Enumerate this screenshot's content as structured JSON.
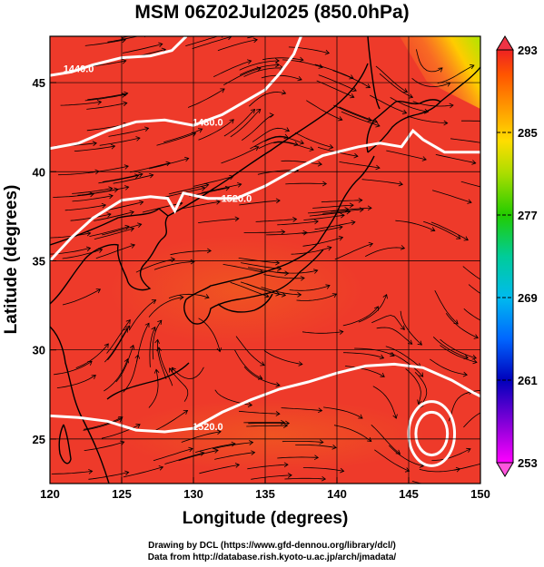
{
  "title": "MSM 06Z02Jul2025 (850.0hPa)",
  "credits": {
    "line1": "Drawing by DCL (https://www.gfd-dennou.org/library/dcl/)",
    "line2": "Data from http://database.rish.kyoto-u.ac.jp/arch/jmadata/"
  },
  "chart_data": {
    "type": "map",
    "xlabel": "Longitude (degrees)",
    "ylabel": "Latitude  (degrees)",
    "xlim": [
      120,
      150
    ],
    "ylim": [
      22.5,
      47.6
    ],
    "xticks": [
      120,
      125,
      130,
      135,
      140,
      145,
      150
    ],
    "yticks": [
      25,
      30,
      35,
      40,
      45
    ],
    "colorbar": {
      "min": 253,
      "max": 293,
      "ticks": [
        293,
        285,
        277,
        269,
        261,
        253
      ],
      "colors": [
        "#ff00ff",
        "#8800ee",
        "#0000cc",
        "#0055ff",
        "#00aaff",
        "#00cccc",
        "#00cc66",
        "#22cc00",
        "#88dd00",
        "#ccee00",
        "#ffdd00",
        "#ffaa00",
        "#ff7700",
        "#ff4400",
        "#ee2222"
      ]
    },
    "contours": [
      {
        "label": "1440.0",
        "points": [
          [
            120,
            45.4
          ],
          [
            121.5,
            45.6
          ],
          [
            123,
            46.0
          ],
          [
            125,
            46.4
          ],
          [
            127,
            46.5
          ],
          [
            128.5,
            46.8
          ],
          [
            129.5,
            47.6
          ]
        ]
      },
      {
        "label": "1480.0",
        "points": [
          [
            120,
            41.3
          ],
          [
            122,
            41.6
          ],
          [
            124,
            42.3
          ],
          [
            126,
            42.8
          ],
          [
            128,
            42.9
          ],
          [
            130,
            42.6
          ],
          [
            132,
            43.2
          ],
          [
            133.5,
            43.9
          ],
          [
            135,
            44.6
          ],
          [
            136,
            45.5
          ],
          [
            137,
            46.6
          ],
          [
            137.5,
            47.6
          ]
        ]
      },
      {
        "label": "1520.0",
        "points": [
          [
            120,
            35.0
          ],
          [
            121.5,
            36.3
          ],
          [
            123,
            37.4
          ],
          [
            125,
            38.4
          ],
          [
            127,
            38.6
          ],
          [
            128.2,
            38.5
          ],
          [
            128.7,
            37.8
          ],
          [
            129.3,
            38.8
          ],
          [
            131,
            38.5
          ],
          [
            133,
            38.5
          ],
          [
            135,
            39.2
          ],
          [
            137,
            40.1
          ],
          [
            139,
            40.9
          ],
          [
            140,
            41.1
          ],
          [
            141.5,
            41.4
          ],
          [
            143,
            41.6
          ],
          [
            144.5,
            41.4
          ],
          [
            145.3,
            42.3
          ],
          [
            146,
            41.8
          ],
          [
            147.5,
            41.1
          ],
          [
            150,
            41.1
          ]
        ]
      },
      {
        "label": "1520.0",
        "points": [
          [
            120,
            26.3
          ],
          [
            122,
            26.2
          ],
          [
            124,
            26.0
          ],
          [
            126,
            25.5
          ],
          [
            128,
            25.4
          ],
          [
            130,
            25.6
          ],
          [
            132,
            26.5
          ],
          [
            134,
            27.2
          ],
          [
            136,
            27.8
          ],
          [
            138,
            28.2
          ],
          [
            140,
            28.7
          ],
          [
            142,
            29.1
          ],
          [
            144,
            29.2
          ],
          [
            146,
            29.0
          ],
          [
            148,
            28.3
          ],
          [
            149.5,
            27.6
          ],
          [
            150,
            27.4
          ]
        ]
      }
    ],
    "closed_contour": {
      "center": [
        146.6,
        25.3
      ],
      "radius_lon": [
        1.1,
        1.6
      ],
      "radius_lat": [
        1.2,
        1.8
      ]
    },
    "contour_label_positions": [
      [
        122,
        45.8
      ],
      [
        131,
        42.8
      ],
      [
        133,
        38.5
      ],
      [
        131,
        25.7
      ]
    ]
  }
}
